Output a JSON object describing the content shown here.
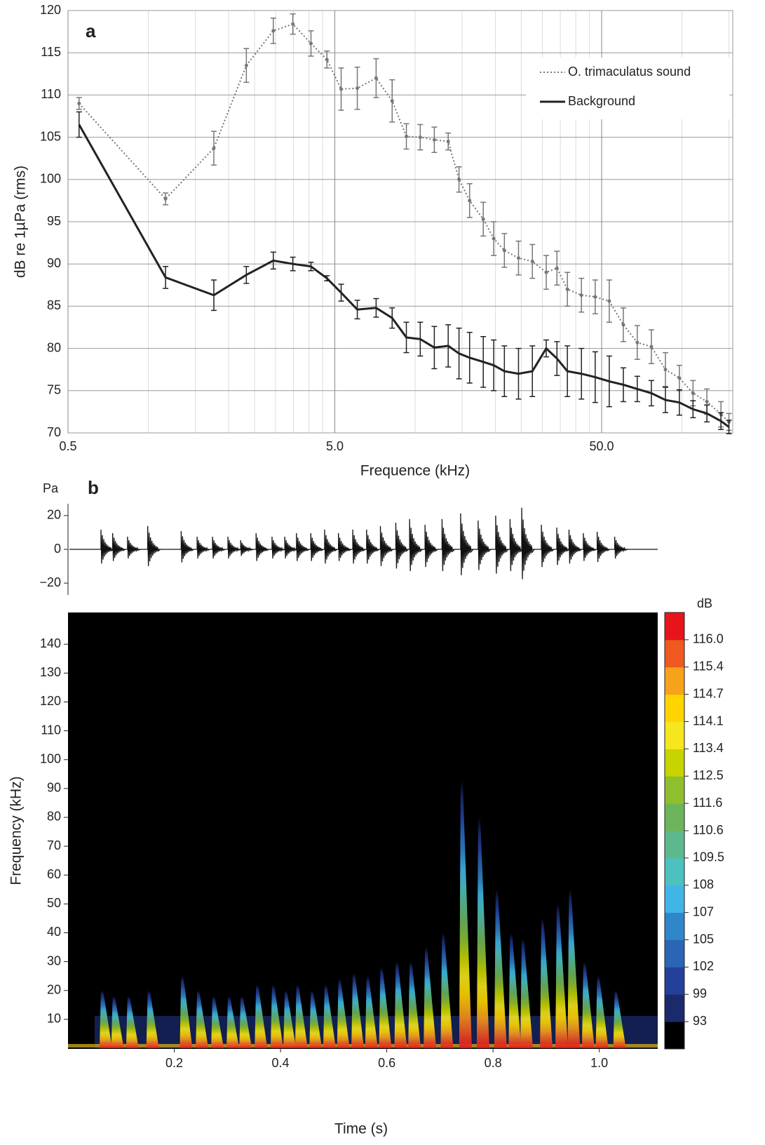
{
  "chart_data": [
    {
      "type": "line",
      "panel": "a",
      "xlog": true,
      "xlim": [
        0.5,
        155
      ],
      "ylim": [
        70,
        120
      ],
      "xticks": [
        {
          "value": 0.5,
          "label": "0.5"
        },
        {
          "value": 5,
          "label": "5.0"
        },
        {
          "value": 50,
          "label": "50.0"
        }
      ],
      "xminorticks": [
        1,
        1.5,
        2,
        2.5,
        3,
        3.5,
        4,
        4.5,
        10,
        15,
        20,
        25,
        30,
        35,
        40,
        45,
        100,
        150
      ],
      "yticks": [
        70,
        75,
        80,
        85,
        90,
        95,
        100,
        105,
        110,
        115,
        120
      ],
      "grid": true,
      "legend": "upper right",
      "xlabel": "Frequence (kHz)",
      "ylabel": "dB re 1µPa (rms)",
      "x": [
        0.55,
        1.16,
        1.76,
        2.33,
        2.94,
        3.48,
        4.07,
        4.67,
        5.28,
        6.07,
        7.14,
        8.2,
        9.27,
        10.45,
        11.8,
        13.3,
        14.6,
        16,
        18,
        19.7,
        21.6,
        24.4,
        27.5,
        31,
        34,
        37.2,
        42,
        47.3,
        53.4,
        60.3,
        68,
        76.8,
        86.7,
        97.8,
        110,
        124,
        140,
        150
      ],
      "series": [
        {
          "name": "O. trimaculatus sound",
          "color": "#777777",
          "style": "dotted",
          "markers": true,
          "values": [
            109,
            97.7,
            103.7,
            113.5,
            117.6,
            118.4,
            116.1,
            114.2,
            110.7,
            110.8,
            112,
            109.3,
            105.1,
            105,
            104.7,
            104.5,
            100,
            97.5,
            95.3,
            93,
            91.6,
            90.7,
            90.3,
            89,
            89.5,
            87,
            86.3,
            86.1,
            85.6,
            82.8,
            80.7,
            80.2,
            77.5,
            76.5,
            74.7,
            73.7,
            72.2,
            71.3
          ],
          "errors": [
            0.7,
            0.7,
            2,
            2,
            1.5,
            1.2,
            1.5,
            1,
            2.5,
            2.5,
            2.3,
            2.5,
            1.5,
            1.5,
            1.5,
            1,
            1.5,
            2,
            2,
            2,
            2,
            2,
            2,
            2,
            2,
            2,
            2,
            2,
            2.5,
            2,
            2,
            2,
            2,
            1.5,
            1.5,
            1.5,
            1.5,
            1
          ]
        },
        {
          "name": "Background",
          "color": "#222222",
          "style": "solid",
          "markers": false,
          "values": [
            106.5,
            88.4,
            86.3,
            88.7,
            90.4,
            90,
            89.7,
            88.3,
            86.6,
            84.6,
            84.8,
            83.6,
            81.3,
            81.1,
            80.1,
            80.3,
            79.4,
            78.9,
            78.4,
            78,
            77.3,
            77,
            77.3,
            80,
            78.8,
            77.3,
            77,
            76.6,
            76.1,
            75.7,
            75.2,
            74.7,
            73.9,
            73.6,
            72.8,
            72.3,
            71.4,
            70.7
          ],
          "errors": [
            1.5,
            1.3,
            1.8,
            1,
            1,
            0.8,
            0.5,
            0.3,
            1,
            1.1,
            1.1,
            1.2,
            1.8,
            2,
            2.5,
            2.5,
            3,
            3,
            3,
            3,
            3,
            3,
            3,
            1,
            2,
            3,
            3,
            3,
            3,
            2,
            1.5,
            1.5,
            1.5,
            1.5,
            1,
            1,
            1,
            0.8
          ]
        }
      ]
    },
    {
      "type": "waveform",
      "panel": "b",
      "ylabel": "Pa",
      "xlim": [
        0,
        1.11
      ],
      "ylim": [
        -27,
        27
      ],
      "yticks": [
        {
          "value": -20,
          "label": "−20"
        },
        0,
        20
      ],
      "color": "#111111",
      "x": [
        0.062,
        0.084,
        0.112,
        0.15,
        0.213,
        0.243,
        0.272,
        0.301,
        0.325,
        0.354,
        0.384,
        0.408,
        0.43,
        0.457,
        0.483,
        0.509,
        0.536,
        0.562,
        0.588,
        0.617,
        0.643,
        0.672,
        0.704,
        0.739,
        0.772,
        0.805,
        0.832,
        0.854,
        0.891,
        0.92,
        0.943,
        0.97,
        0.996,
        1.029
      ],
      "values": [
        11.7,
        9.6,
        7.5,
        13.8,
        10.8,
        7.5,
        7.5,
        7.5,
        5.4,
        9.6,
        7.5,
        7.5,
        9.6,
        9.6,
        11.7,
        9.6,
        11.7,
        11.7,
        13.8,
        15.8,
        17.9,
        14.6,
        17.9,
        21.3,
        17.1,
        20,
        17.9,
        24.6,
        14.6,
        12.9,
        11.7,
        9.6,
        10.4,
        7.5
      ]
    },
    {
      "type": "spectrogram",
      "xlim": [
        0,
        1.11
      ],
      "ylim": [
        0,
        151
      ],
      "xticks": [
        0.2,
        0.4,
        0.6,
        0.8,
        {
          "value": 1,
          "label": "1.0"
        }
      ],
      "yticks": [
        10,
        20,
        30,
        40,
        50,
        60,
        70,
        80,
        90,
        100,
        110,
        120,
        130,
        140
      ],
      "xlabel": "Time (s)",
      "ylabel": "Frequency (kHz)",
      "x": [
        0.062,
        0.084,
        0.112,
        0.15,
        0.213,
        0.243,
        0.272,
        0.301,
        0.325,
        0.354,
        0.384,
        0.408,
        0.43,
        0.457,
        0.483,
        0.509,
        0.536,
        0.562,
        0.588,
        0.617,
        0.643,
        0.672,
        0.704,
        0.739,
        0.772,
        0.805,
        0.832,
        0.854,
        0.891,
        0.92,
        0.943,
        0.97,
        0.996,
        1.029
      ],
      "values": [
        20,
        18,
        18,
        20,
        25,
        20,
        18,
        18,
        18,
        22,
        22,
        20,
        22,
        20,
        22,
        24,
        26,
        25,
        28,
        30,
        30,
        35,
        40,
        93,
        80,
        55,
        40,
        38,
        45,
        50,
        55,
        30,
        25,
        20
      ],
      "colorbar": {
        "label": "dB",
        "colors": [
          "#000000",
          "#1b2a6b",
          "#23409a",
          "#2a66b5",
          "#2f86c8",
          "#3fb6e6",
          "#4cc1c0",
          "#5eb88e",
          "#6db55a",
          "#8fbf2f",
          "#c8d400",
          "#f5e61e",
          "#ffd400",
          "#f7a21b",
          "#ee5a1f",
          "#e8141b"
        ],
        "ticks": [
          93,
          99,
          102,
          105,
          107,
          108,
          109.5,
          110.6,
          111.6,
          112.5,
          113.4,
          114.1,
          114.7,
          115.4,
          {
            "value": 116,
            "label": "116.0"
          }
        ]
      }
    }
  ]
}
